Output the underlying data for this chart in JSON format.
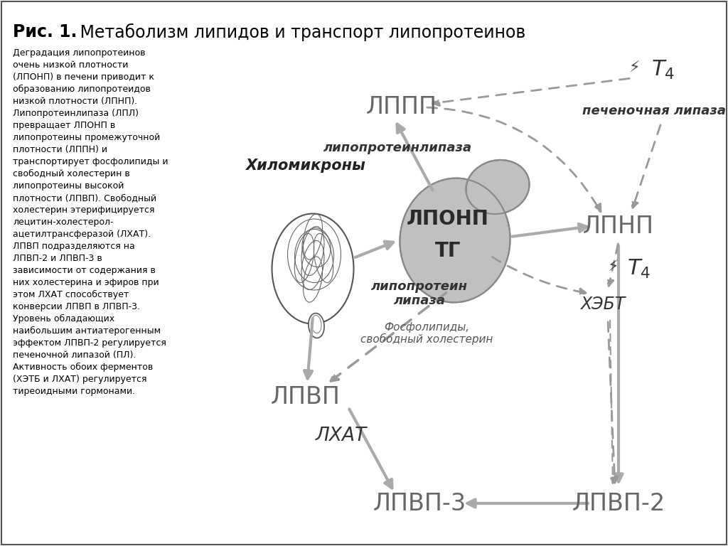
{
  "title_bold": "Рис. 1.",
  "title_normal": " Метаболизм липидов и транспорт липопротеинов",
  "background_color": "#ffffff",
  "left_text_lines": [
    "Деградация липопротеинов",
    "очень низкой плотности",
    "(ЛПОНП) в печени приводит к",
    "образованию липопротеидов",
    "низкой плотности (ЛПНП).",
    "Липопротеинлипаза (ЛПЛ)",
    "превращает ЛПОНП в",
    "липопротеины промежуточной",
    "плотности (ЛППН) и",
    "транспортирует фосфолипиды и",
    "свободный холестерин в",
    "липопротеины высокой",
    "плотности (ЛПВП). Свободный",
    "холестерин этерифицируется",
    "лецитин-холестерол-",
    "ацетилтрансферазой (ЛХАТ).",
    "ЛПВП подразделяются на",
    "ЛПВП-2 и ЛПВП-3 в",
    "зависимости от содержания в",
    "них холестерина и эфиров при",
    "этом ЛХАТ способствует",
    "конверсии ЛПВП в ЛПВП-3.",
    "Уровень обладающих",
    "наибольшим антиатерогенным",
    "эффектом ЛПВП-2 регулируется",
    "печеночной липазой (ПЛ).",
    "Активность обоих ферментов",
    "(ХЭТБ и ЛХАТ) регулируется",
    "тиреоидными гормонами."
  ],
  "arrow_color": "#aaaaaa",
  "dashed_color": "#999999",
  "liver_color": "#c0c0c0",
  "liver_edge": "#888888",
  "node_color": "#666666",
  "label_color": "#333333"
}
